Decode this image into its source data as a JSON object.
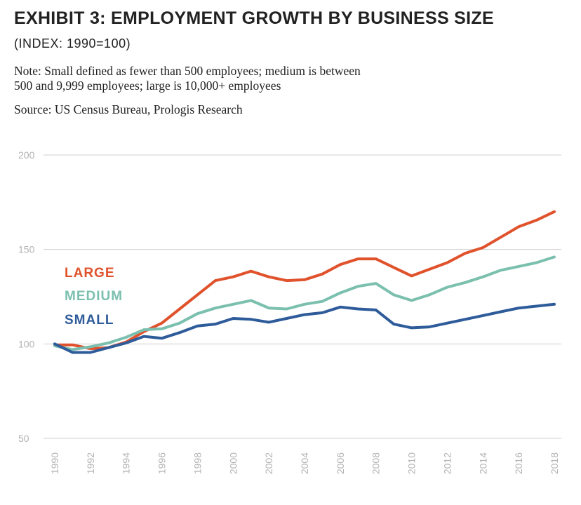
{
  "header": {
    "title": "EXHIBIT 3: EMPLOYMENT GROWTH BY BUSINESS SIZE",
    "subtitle": "(INDEX: 1990=100)",
    "note_line1": "Note: Small defined as fewer than 500 employees; medium is between",
    "note_line2": "500 and 9,999 employees; large is 10,000+ employees",
    "source": "Source: US Census Bureau, Prologis Research"
  },
  "chart_data": {
    "type": "line",
    "title": "EXHIBIT 3: EMPLOYMENT GROWTH BY BUSINESS SIZE",
    "subtitle": "(INDEX: 1990=100)",
    "xlabel": "",
    "ylabel": "",
    "x": [
      1990,
      1991,
      1992,
      1993,
      1994,
      1995,
      1996,
      1997,
      1998,
      1999,
      2000,
      2001,
      2002,
      2003,
      2004,
      2005,
      2006,
      2007,
      2008,
      2009,
      2010,
      2011,
      2012,
      2013,
      2014,
      2015,
      2016,
      2017,
      2018
    ],
    "xticks": [
      "1990",
      "1992",
      "1994",
      "1996",
      "1998",
      "2000",
      "2002",
      "2004",
      "2006",
      "2008",
      "2010",
      "2012",
      "2014",
      "2016",
      "2018"
    ],
    "yticks": [
      "200",
      "150",
      "100",
      "50"
    ],
    "ylim": [
      50,
      200
    ],
    "xlim": [
      1990,
      2018
    ],
    "grid": "horizontal",
    "legend_position": "left",
    "series": [
      {
        "name": "LARGE",
        "color": "#e0522c",
        "values": [
          99.5,
          99.5,
          97.5,
          98,
          101,
          106.5,
          111,
          118.5,
          126,
          133.5,
          135.5,
          138.5,
          135.5,
          133.5,
          134,
          137,
          142,
          145,
          145,
          140.5,
          136,
          139.5,
          143,
          148,
          151,
          156.5,
          162,
          165.5,
          170
        ]
      },
      {
        "name": "MEDIUM",
        "color": "#7bbfae",
        "values": [
          99,
          97,
          98.5,
          100.5,
          103.5,
          107.5,
          108,
          111,
          116,
          119,
          121,
          123,
          119,
          118.5,
          121,
          122.5,
          127,
          130.5,
          132,
          126,
          123,
          126,
          130,
          132.5,
          135.5,
          139,
          141,
          143,
          146
        ]
      },
      {
        "name": "SMALL",
        "color": "#2e5b9a",
        "values": [
          100,
          95.5,
          95.5,
          98,
          100.5,
          104,
          103,
          106,
          109.5,
          110.5,
          113.5,
          113,
          111.5,
          113.5,
          115.5,
          116.5,
          119.5,
          118.5,
          118,
          110.5,
          108.5,
          109,
          111,
          113,
          115,
          117,
          119,
          120,
          121
        ]
      }
    ]
  }
}
